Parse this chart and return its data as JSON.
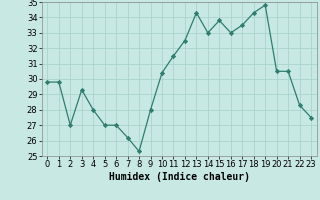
{
  "x": [
    0,
    1,
    2,
    3,
    4,
    5,
    6,
    7,
    8,
    9,
    10,
    11,
    12,
    13,
    14,
    15,
    16,
    17,
    18,
    19,
    20,
    21,
    22,
    23
  ],
  "y": [
    29.8,
    29.8,
    27.0,
    29.3,
    28.0,
    27.0,
    27.0,
    26.2,
    25.3,
    28.0,
    30.4,
    31.5,
    32.5,
    34.3,
    33.0,
    33.8,
    33.0,
    33.5,
    34.3,
    34.8,
    30.5,
    30.5,
    28.3,
    27.5
  ],
  "line_color": "#2e7d6e",
  "marker": "D",
  "marker_size": 2.2,
  "bg_color": "#c8e8e4",
  "grid_color": "#a8d4cc",
  "xlabel": "Humidex (Indice chaleur)",
  "ylim": [
    25,
    35
  ],
  "xlim": [
    -0.5,
    23.5
  ],
  "yticks": [
    25,
    26,
    27,
    28,
    29,
    30,
    31,
    32,
    33,
    34,
    35
  ],
  "xticks": [
    0,
    1,
    2,
    3,
    4,
    5,
    6,
    7,
    8,
    9,
    10,
    11,
    12,
    13,
    14,
    15,
    16,
    17,
    18,
    19,
    20,
    21,
    22,
    23
  ],
  "xlabel_fontsize": 7,
  "tick_fontsize": 6
}
